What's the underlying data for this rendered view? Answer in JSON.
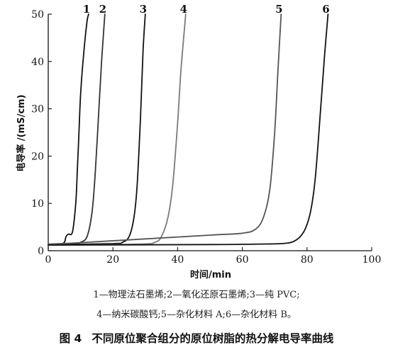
{
  "chart_data": {
    "type": "line",
    "xlabel": "时间/min",
    "ylabel": "电导率 /(mS/cm)",
    "xlim": [
      0,
      100
    ],
    "ylim": [
      0,
      50
    ],
    "xticks": [
      0,
      20,
      40,
      60,
      80,
      100
    ],
    "yticks": [
      0,
      10,
      20,
      30,
      40,
      50
    ],
    "grid": false,
    "series": [
      {
        "name": "1",
        "color": "#111111",
        "x": [
          0,
          4.5,
          5.5,
          6.2,
          7.5,
          8.5,
          9,
          9.5,
          10,
          11,
          12,
          12.5
        ],
        "y": [
          1.3,
          1.5,
          3,
          3.5,
          4,
          10,
          17,
          25,
          33,
          42,
          48.5,
          50
        ]
      },
      {
        "name": "2",
        "color": "#333333",
        "x": [
          0,
          8,
          10,
          12,
          13.5,
          14.5,
          15.5,
          16.5,
          17.5
        ],
        "y": [
          1.3,
          1.5,
          1.8,
          3,
          8,
          16,
          28,
          40,
          50
        ]
      },
      {
        "name": "3",
        "color": "#111111",
        "x": [
          0,
          20,
          23,
          25,
          26.5,
          27.5,
          28.5,
          29.3,
          30
        ],
        "y": [
          1.3,
          1.5,
          1.8,
          3,
          7,
          14,
          28,
          42,
          50
        ]
      },
      {
        "name": "4",
        "color": "#7a7a7a",
        "x": [
          0,
          28,
          33,
          35,
          37,
          38.5,
          40,
          41,
          42.5
        ],
        "y": [
          1.2,
          1.4,
          1.8,
          3,
          7,
          14,
          27,
          38,
          50
        ]
      },
      {
        "name": "5",
        "color": "#555555",
        "x": [
          0,
          10,
          30,
          50,
          60,
          64,
          66.5,
          68.5,
          70,
          71,
          72
        ],
        "y": [
          1.4,
          1.7,
          2.5,
          3.3,
          3.7,
          4.5,
          7,
          13,
          25,
          38,
          50
        ]
      },
      {
        "name": "6",
        "color": "#111111",
        "x": [
          0,
          50,
          65,
          72,
          76,
          79,
          81,
          82.5,
          84,
          85.5,
          86.5
        ],
        "y": [
          1.2,
          1.3,
          1.4,
          1.5,
          2,
          4,
          8,
          15,
          28,
          42,
          50
        ]
      }
    ]
  },
  "legend": {
    "line1": "1—物理法石墨烯;2—氧化还原石墨烯;3—纯 PVC;",
    "line2": "4—纳米碳酸钙;5—杂化材料 A;6—杂化材料 B。"
  },
  "caption": {
    "figure_no": "图 4",
    "text": "不同原位聚合组分的原位树脂的热分解电导率曲线"
  }
}
